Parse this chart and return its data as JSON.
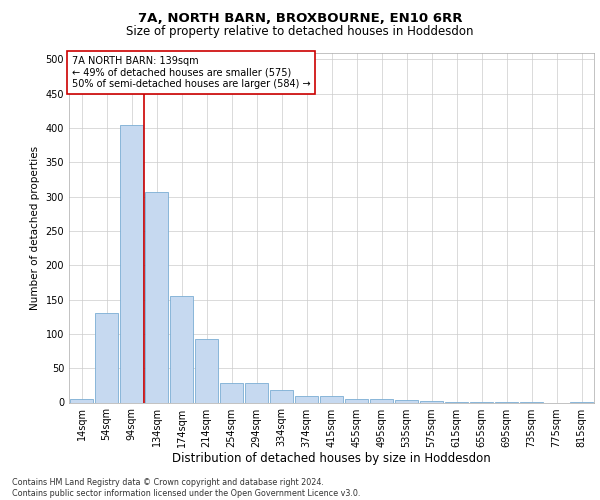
{
  "title_line1": "7A, NORTH BARN, BROXBOURNE, EN10 6RR",
  "title_line2": "Size of property relative to detached houses in Hoddesdon",
  "xlabel": "Distribution of detached houses by size in Hoddesdon",
  "ylabel": "Number of detached properties",
  "footnote": "Contains HM Land Registry data © Crown copyright and database right 2024.\nContains public sector information licensed under the Open Government Licence v3.0.",
  "categories": [
    "14sqm",
    "54sqm",
    "94sqm",
    "134sqm",
    "174sqm",
    "214sqm",
    "254sqm",
    "294sqm",
    "334sqm",
    "374sqm",
    "415sqm",
    "455sqm",
    "495sqm",
    "535sqm",
    "575sqm",
    "615sqm",
    "655sqm",
    "695sqm",
    "735sqm",
    "775sqm",
    "815sqm"
  ],
  "values": [
    5,
    130,
    405,
    307,
    155,
    92,
    28,
    28,
    18,
    10,
    10,
    5,
    5,
    3,
    2,
    1,
    1,
    1,
    1,
    0,
    1
  ],
  "bar_color": "#c6d9f0",
  "bar_edge_color": "#7aadd4",
  "vline_x": 2.5,
  "vline_color": "#cc0000",
  "annotation_text": "7A NORTH BARN: 139sqm\n← 49% of detached houses are smaller (575)\n50% of semi-detached houses are larger (584) →",
  "annotation_box_color": "#ffffff",
  "annotation_box_edge": "#cc0000",
  "ylim": [
    0,
    510
  ],
  "yticks": [
    0,
    50,
    100,
    150,
    200,
    250,
    300,
    350,
    400,
    450,
    500
  ],
  "bg_color": "#ffffff",
  "grid_color": "#cccccc",
  "title1_fontsize": 9.5,
  "title2_fontsize": 8.5,
  "ylabel_fontsize": 7.5,
  "xlabel_fontsize": 8.5,
  "tick_fontsize": 7,
  "annot_fontsize": 7,
  "footnote_fontsize": 5.8
}
